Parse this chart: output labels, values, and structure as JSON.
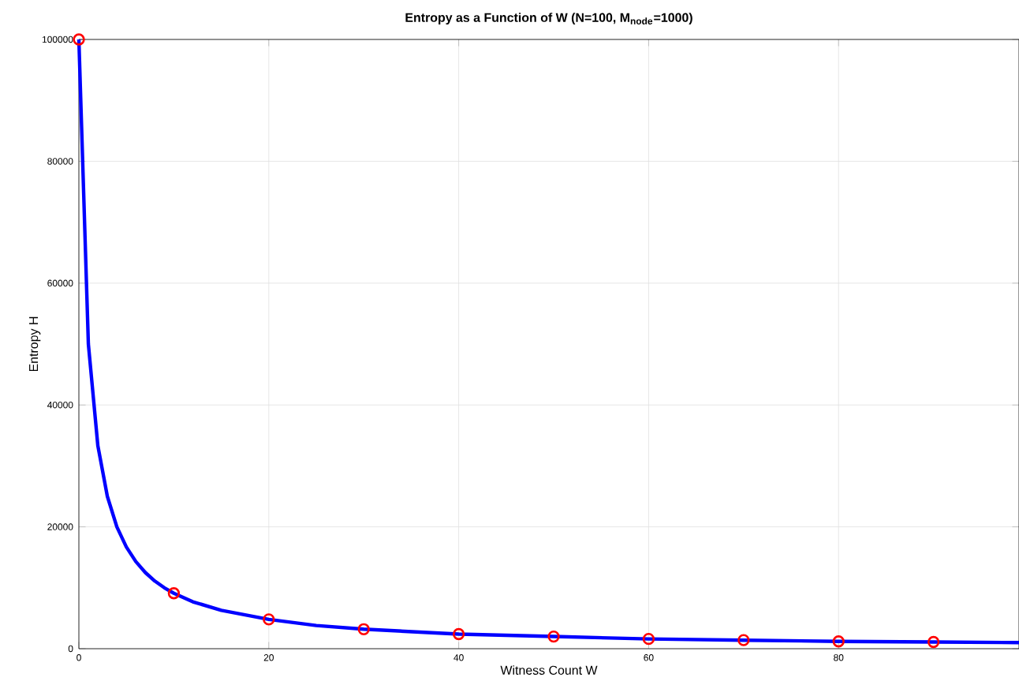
{
  "chart_data": {
    "type": "line",
    "title": "Entropy as a Function of W (N=100, M$_{node}$=1000)",
    "xlabel": "Witness Count W",
    "ylabel": "Entropy H",
    "xlim": [
      0,
      99
    ],
    "ylim": [
      0,
      100000
    ],
    "xticks": [
      0,
      20,
      40,
      60,
      80
    ],
    "yticks": [
      0,
      20000,
      40000,
      60000,
      80000,
      100000
    ],
    "grid": true,
    "series": [
      {
        "color": "#0000ff",
        "marker": "none",
        "x": [
          0,
          1,
          2,
          3,
          4,
          5,
          6,
          7,
          8,
          9,
          10,
          12,
          15,
          20,
          25,
          30,
          40,
          50,
          60,
          70,
          80,
          90,
          99
        ],
        "values": [
          100000,
          50000,
          33300,
          25000,
          20000,
          16700,
          14300,
          12500,
          11100,
          10000,
          9100,
          7700,
          6300,
          4800,
          3800,
          3200,
          2400,
          2000,
          1600,
          1400,
          1200,
          1100,
          1000
        ]
      },
      {
        "type": "scatter",
        "color": "#ff0000",
        "marker": "circle",
        "x": [
          0,
          10,
          20,
          30,
          40,
          50,
          60,
          70,
          80,
          90
        ],
        "values": [
          100000,
          9100,
          4800,
          3200,
          2400,
          2000,
          1600,
          1400,
          1200,
          1100
        ]
      }
    ]
  }
}
